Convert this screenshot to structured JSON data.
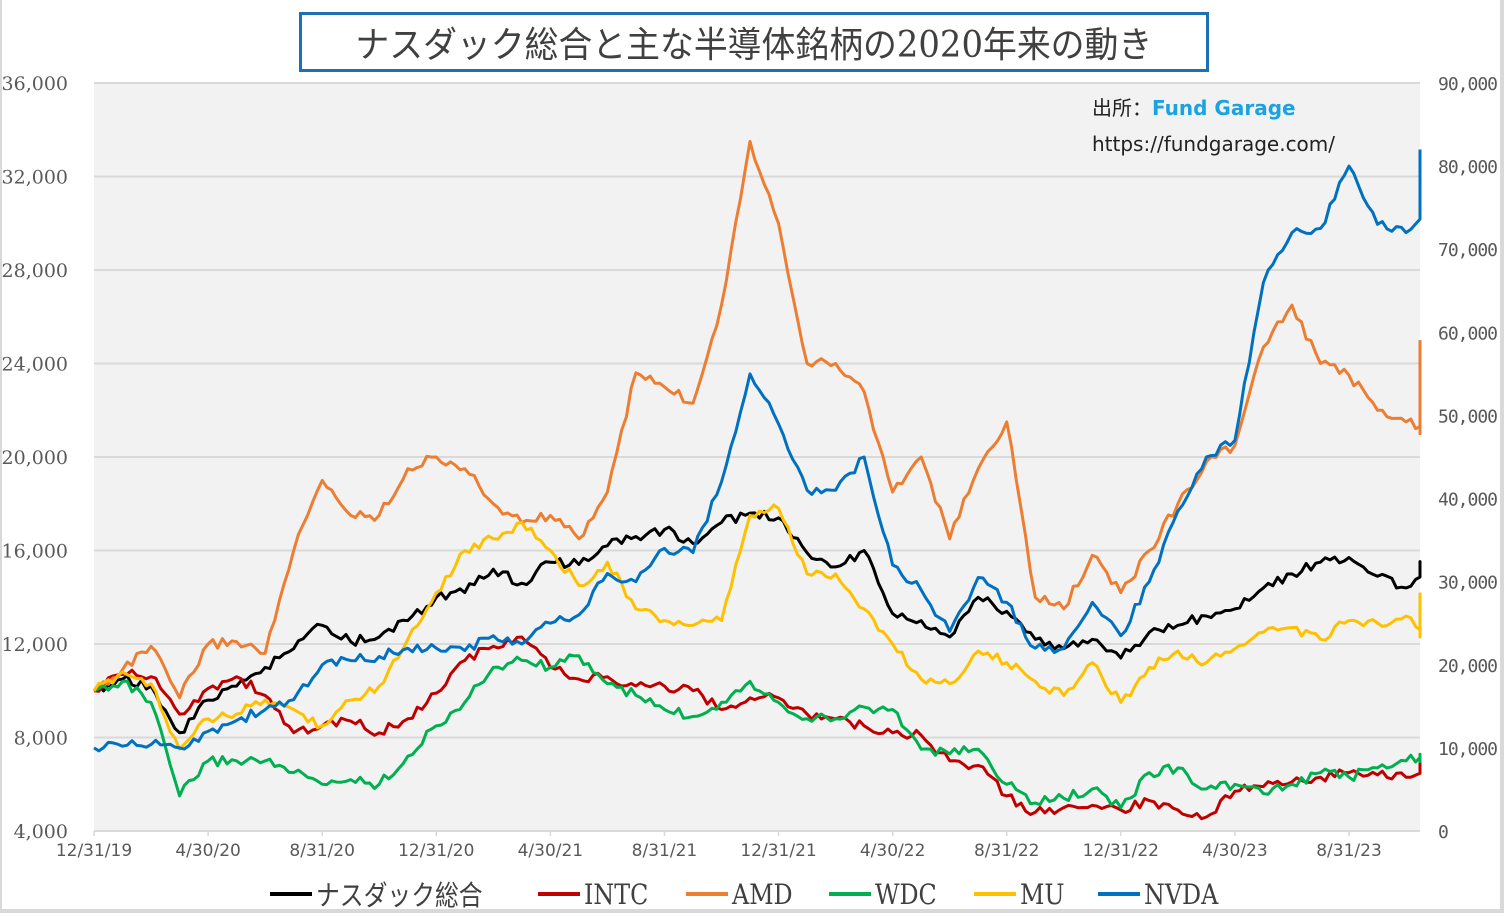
{
  "title": "ナスダック総合と主な半導体銘柄の2020年来の動き",
  "source": {
    "label": "出所：",
    "brand": "Fund Garage",
    "url": "https://fundgarage.com/"
  },
  "chart_data": {
    "type": "line",
    "title": "ナスダック総合と主な半導体銘柄の2020年来の動き",
    "xlabel": "",
    "ylabel": "",
    "grid": true,
    "legend_position": "bottom",
    "x_tick_labels": [
      "12/31/19",
      "4/30/20",
      "8/31/20",
      "12/31/20",
      "4/30/21",
      "8/31/21",
      "12/31/21",
      "4/30/22",
      "8/31/22",
      "12/31/22",
      "4/30/23",
      "8/31/23"
    ],
    "y_left": {
      "range": [
        4000,
        36000
      ],
      "ticks": [
        "4,000",
        "8,000",
        "12,000",
        "16,000",
        "20,000",
        "24,000",
        "28,000",
        "32,000",
        "36,000"
      ]
    },
    "y_right": {
      "range": [
        0,
        90000
      ],
      "ticks": [
        "0",
        "10,000",
        "20,000",
        "30,000",
        "40,000",
        "50,000",
        "60,000",
        "70,000",
        "80,000",
        "90,000"
      ]
    },
    "x": [
      "2019-12",
      "2020-01",
      "2020-02",
      "2020-03",
      "2020-04",
      "2020-05",
      "2020-06",
      "2020-07",
      "2020-08",
      "2020-09",
      "2020-10",
      "2020-11",
      "2020-12",
      "2021-01",
      "2021-02",
      "2021-03",
      "2021-04",
      "2021-05",
      "2021-06",
      "2021-07",
      "2021-08",
      "2021-09",
      "2021-10",
      "2021-11",
      "2021-12",
      "2022-01",
      "2022-02",
      "2022-03",
      "2022-04",
      "2022-05",
      "2022-06",
      "2022-07",
      "2022-08",
      "2022-09",
      "2022-10",
      "2022-11",
      "2022-12",
      "2023-01",
      "2023-02",
      "2023-03",
      "2023-04",
      "2023-05",
      "2023-06",
      "2023-07",
      "2023-08",
      "2023-09",
      "2023-10",
      "2023-11",
      "2023-12"
    ],
    "series": [
      {
        "name": "ナスダック総合",
        "color": "#000000",
        "axis": "left",
        "values": [
          10000,
          10500,
          10200,
          8200,
          9600,
          10200,
          11000,
          11800,
          12800,
          12100,
          12300,
          13000,
          14000,
          14200,
          15200,
          14600,
          15500,
          15400,
          16200,
          16600,
          16900,
          16300,
          17200,
          17600,
          17400,
          15900,
          15300,
          16000,
          13300,
          13000,
          12300,
          14000,
          13400,
          12200,
          11800,
          12200,
          11400,
          12500,
          12800,
          13200,
          13500,
          14400,
          15000,
          15500,
          15700,
          14900,
          14400,
          15400,
          15200
        ]
      },
      {
        "name": "INTC",
        "color": "#c00000",
        "axis": "left",
        "values": [
          10000,
          10700,
          10600,
          9000,
          10100,
          10600,
          9800,
          8200,
          8500,
          8700,
          8200,
          8800,
          9900,
          11300,
          11900,
          12300,
          11000,
          10500,
          10600,
          10200,
          10200,
          10000,
          9200,
          9700,
          9700,
          9000,
          8800,
          8500,
          8200,
          8100,
          7000,
          6800,
          5500,
          4800,
          5000,
          5100,
          4900,
          5300,
          4900,
          4600,
          5700,
          5900,
          6100,
          6300,
          6500,
          6400,
          6300,
          6900,
          7100
        ]
      },
      {
        "name": "AMD",
        "color": "#ed7d31",
        "axis": "left",
        "values": [
          10000,
          10900,
          11900,
          9700,
          12000,
          12100,
          11600,
          16000,
          19000,
          17500,
          17500,
          19500,
          20000,
          19500,
          18000,
          17200,
          17500,
          16500,
          18500,
          23600,
          23000,
          22300,
          26500,
          33500,
          30000,
          24000,
          24000,
          22800,
          18500,
          20000,
          16500,
          19500,
          21500,
          14000,
          13500,
          15800,
          14200,
          16000,
          18000,
          19800,
          20500,
          24700,
          26500,
          24000,
          23500,
          22000,
          21500,
          21000,
          25000
        ]
      },
      {
        "name": "WDC",
        "color": "#00b050",
        "axis": "left",
        "values": [
          10000,
          10400,
          9500,
          5500,
          7000,
          7000,
          7000,
          6500,
          6000,
          6200,
          6000,
          7200,
          8500,
          9500,
          11000,
          11300,
          11000,
          11500,
          10300,
          9800,
          9200,
          8900,
          9500,
          10400,
          9500,
          8800,
          8800,
          9300,
          9200,
          7500,
          7300,
          7500,
          6000,
          5200,
          5400,
          5800,
          5000,
          6500,
          6700,
          5800,
          6000,
          5600,
          6000,
          6500,
          6300,
          6700,
          7000,
          7200,
          7100
        ]
      },
      {
        "name": "MU",
        "color": "#ffc000",
        "axis": "left",
        "values": [
          10000,
          10800,
          10300,
          7500,
          8800,
          9000,
          9600,
          9200,
          8500,
          9600,
          10200,
          12200,
          14200,
          16000,
          16500,
          17200,
          16000,
          14500,
          15500,
          13500,
          13000,
          12800,
          13000,
          17500,
          17800,
          15000,
          15000,
          13500,
          12000,
          10500,
          10300,
          11700,
          11200,
          10400,
          9800,
          11200,
          9500,
          11000,
          11700,
          11200,
          11800,
          12500,
          12700,
          12200,
          13000,
          12900,
          13200,
          12300,
          14200
        ]
      },
      {
        "name": "NVDA",
        "color": "#0070c0",
        "axis": "right",
        "values": [
          10000,
          10200,
          10400,
          10000,
          12000,
          13300,
          14600,
          15800,
          20000,
          20500,
          21000,
          22000,
          22000,
          21700,
          23500,
          22500,
          25000,
          26000,
          31000,
          30000,
          34000,
          33500,
          42000,
          55000,
          49000,
          41000,
          41000,
          45000,
          32000,
          29000,
          24000,
          30500,
          27500,
          22000,
          22000,
          27500,
          23500,
          30000,
          38500,
          45000,
          47000,
          66000,
          72000,
          72500,
          80000,
          73000,
          72000,
          76000,
          82000
        ]
      }
    ]
  },
  "legend": {
    "items": [
      {
        "label": "ナスダック総合",
        "color": "#000000"
      },
      {
        "label": "INTC",
        "color": "#c00000"
      },
      {
        "label": "AMD",
        "color": "#ed7d31"
      },
      {
        "label": "WDC",
        "color": "#00b050"
      },
      {
        "label": "MU",
        "color": "#ffc000"
      },
      {
        "label": "NVDA",
        "color": "#0070c0"
      }
    ]
  }
}
